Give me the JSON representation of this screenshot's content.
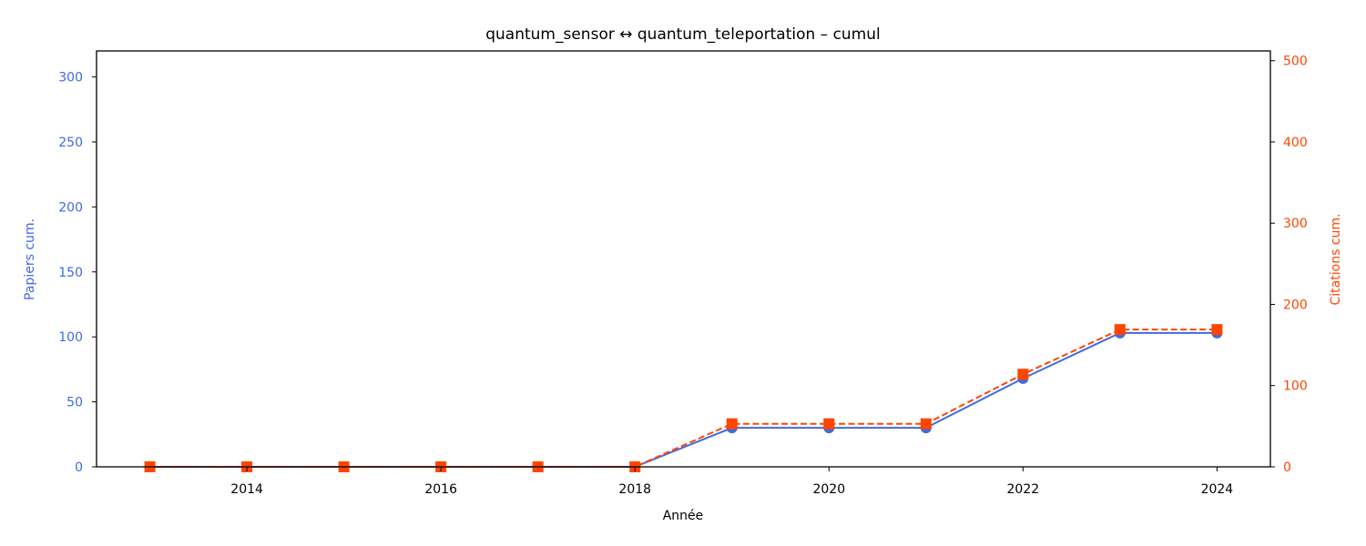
{
  "chart_data": {
    "type": "line",
    "title": "quantum_sensor  ↔  quantum_teleportation  –  cumul",
    "xlabel": "Année",
    "ylabel_left": "Papiers cum.",
    "ylabel_right": "Citations cum.",
    "x": [
      2013,
      2014,
      2015,
      2016,
      2017,
      2018,
      2019,
      2020,
      2021,
      2022,
      2023,
      2024
    ],
    "xlim": [
      2012.45,
      2024.55
    ],
    "x_ticks": [
      2014,
      2016,
      2018,
      2020,
      2022,
      2024
    ],
    "ylim_left": [
      0,
      320
    ],
    "y_ticks_left": [
      0,
      50,
      100,
      150,
      200,
      250,
      300
    ],
    "ylim_right": [
      0,
      512
    ],
    "y_ticks_right": [
      0,
      100,
      200,
      300,
      400,
      500
    ],
    "grid": false,
    "series": [
      {
        "name": "Papiers cum.",
        "axis": "left",
        "color": "#4169E1",
        "line_style": "solid",
        "marker": "circle",
        "values": [
          0,
          0,
          0,
          0,
          0,
          0,
          30,
          30,
          30,
          68,
          103,
          103
        ]
      },
      {
        "name": "Citations cum.",
        "axis": "right",
        "color": "#FF4500",
        "line_style": "dashed",
        "marker": "square",
        "values": [
          0,
          0,
          0,
          0,
          0,
          0,
          53,
          53,
          53,
          114,
          169,
          169
        ]
      }
    ]
  }
}
